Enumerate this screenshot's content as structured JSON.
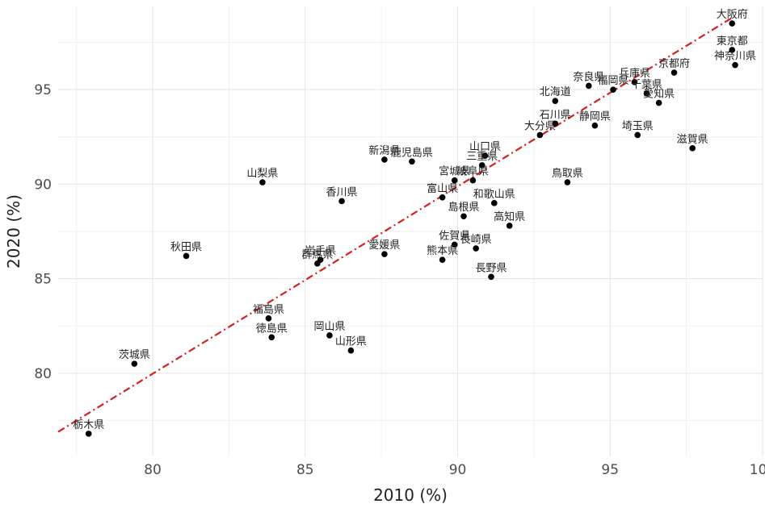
{
  "chart_data": {
    "type": "scatter",
    "xlabel": "2010 (%)",
    "ylabel": "2020 (%)",
    "xlim": [
      76.9,
      100
    ],
    "ylim": [
      75.6,
      99.4
    ],
    "x_ticks": [
      80,
      85,
      90,
      95,
      100
    ],
    "y_ticks": [
      80,
      85,
      90,
      95
    ],
    "grid": true,
    "reference_line": {
      "type": "dashdot",
      "color": "#d62020",
      "x": [
        76.9,
        99.0
      ],
      "y": [
        76.9,
        98.8
      ]
    },
    "points": [
      {
        "label": "大阪府",
        "x": 99.0,
        "y": 98.5
      },
      {
        "label": "東京都",
        "x": 99.0,
        "y": 97.1
      },
      {
        "label": "神奈川県",
        "x": 99.1,
        "y": 96.3
      },
      {
        "label": "京都府",
        "x": 97.1,
        "y": 95.9
      },
      {
        "label": "兵庫県",
        "x": 95.8,
        "y": 95.4
      },
      {
        "label": "千葉県",
        "x": 96.2,
        "y": 94.8
      },
      {
        "label": "愛知県",
        "x": 96.6,
        "y": 94.3
      },
      {
        "label": "奈良県",
        "x": 94.3,
        "y": 95.2
      },
      {
        "label": "福岡県",
        "x": 95.1,
        "y": 95.0
      },
      {
        "label": "和歌山県",
        "x": 91.2,
        "y": 89.0
      },
      {
        "label": "北海道",
        "x": 93.2,
        "y": 94.4
      },
      {
        "label": "石川県",
        "x": 93.2,
        "y": 93.2
      },
      {
        "label": "静岡県",
        "x": 94.5,
        "y": 93.1
      },
      {
        "label": "大分県",
        "x": 92.7,
        "y": 92.6
      },
      {
        "label": "埼玉県",
        "x": 95.9,
        "y": 92.6
      },
      {
        "label": "滋賀県",
        "x": 97.7,
        "y": 91.9
      },
      {
        "label": "山口県",
        "x": 90.9,
        "y": 91.5
      },
      {
        "label": "三重県",
        "x": 90.8,
        "y": 91.0
      },
      {
        "label": "新潟県",
        "x": 87.6,
        "y": 91.3
      },
      {
        "label": "鹿児島県",
        "x": 88.5,
        "y": 91.2
      },
      {
        "label": "宮城県",
        "x": 89.9,
        "y": 90.2
      },
      {
        "label": "岐阜県",
        "x": 90.5,
        "y": 90.2
      },
      {
        "label": "富山県",
        "x": 89.5,
        "y": 89.3
      },
      {
        "label": "鳥取県",
        "x": 93.6,
        "y": 90.1
      },
      {
        "label": "山梨県",
        "x": 83.6,
        "y": 90.1
      },
      {
        "label": "香川県",
        "x": 86.2,
        "y": 89.1
      },
      {
        "label": "島根県",
        "x": 90.2,
        "y": 88.3
      },
      {
        "label": "高知県",
        "x": 91.7,
        "y": 87.8
      },
      {
        "label": "秋田県",
        "x": 81.1,
        "y": 86.2
      },
      {
        "label": "岩手県",
        "x": 85.5,
        "y": 86.0
      },
      {
        "label": "群馬県",
        "x": 85.4,
        "y": 85.8
      },
      {
        "label": "愛媛県",
        "x": 87.6,
        "y": 86.3
      },
      {
        "label": "佐賀県",
        "x": 89.9,
        "y": 86.8
      },
      {
        "label": "長崎県",
        "x": 90.6,
        "y": 86.6
      },
      {
        "label": "熊本県",
        "x": 89.5,
        "y": 86.0
      },
      {
        "label": "長野県",
        "x": 91.1,
        "y": 85.1
      },
      {
        "label": "福島県",
        "x": 83.8,
        "y": 82.9
      },
      {
        "label": "徳島県",
        "x": 83.9,
        "y": 81.9
      },
      {
        "label": "岡山県",
        "x": 85.8,
        "y": 82.0
      },
      {
        "label": "山形県",
        "x": 86.5,
        "y": 81.2
      },
      {
        "label": "茨城県",
        "x": 79.4,
        "y": 80.5
      },
      {
        "label": "栃木県",
        "x": 77.9,
        "y": 76.8
      }
    ]
  }
}
